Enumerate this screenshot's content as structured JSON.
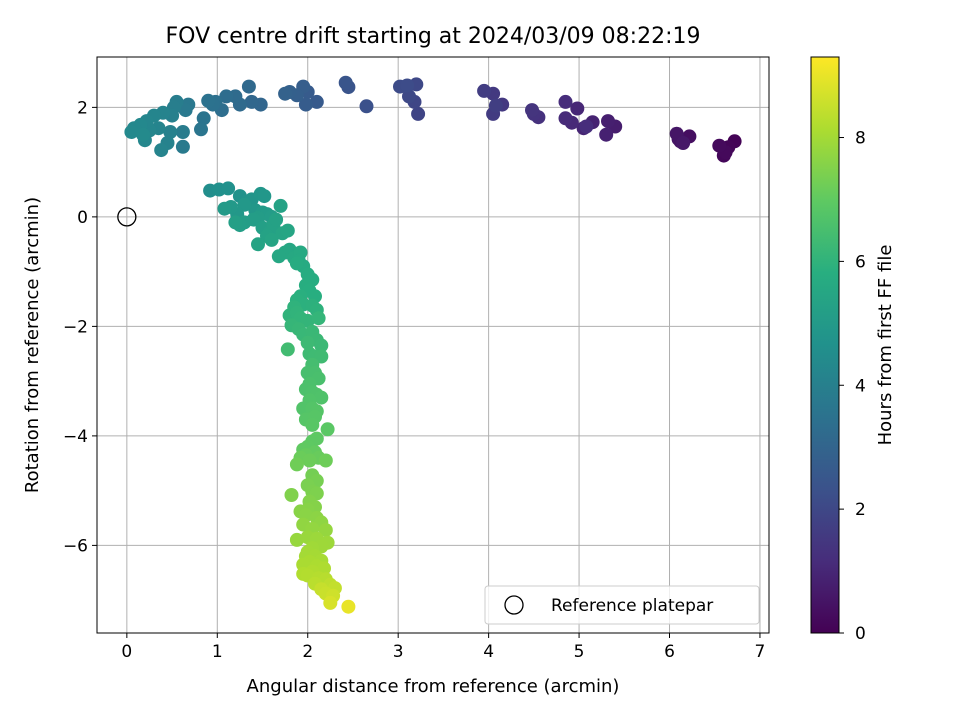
{
  "chart_data": {
    "type": "scatter",
    "title": "FOV centre drift starting at 2024/03/09 08:22:19",
    "xlabel": "Angular distance from reference (arcmin)",
    "ylabel": "Rotation from reference (arcmin)",
    "xlim": [
      -0.33,
      7.1
    ],
    "ylim": [
      -7.6,
      2.92
    ],
    "xticks": [
      0,
      1,
      2,
      3,
      4,
      5,
      6,
      7
    ],
    "yticks": [
      -6,
      -4,
      -2,
      0,
      2
    ],
    "grid": true,
    "colorbar": {
      "label": "Hours from first FF file",
      "colormap": "viridis",
      "range": [
        0,
        9.3
      ],
      "ticks": [
        0,
        2,
        4,
        6,
        8
      ]
    },
    "legend": {
      "placement": "lower right",
      "entries": [
        {
          "label": "Reference platepar",
          "marker": "open-circle"
        }
      ]
    },
    "reference_point": {
      "x": 0,
      "y": 0
    },
    "points": [
      [
        6.72,
        1.38,
        0.05
      ],
      [
        6.65,
        1.27,
        0.1
      ],
      [
        6.6,
        1.12,
        0.15
      ],
      [
        6.62,
        1.18,
        0.2
      ],
      [
        6.55,
        1.3,
        0.25
      ],
      [
        6.22,
        1.47,
        0.35
      ],
      [
        6.12,
        1.38,
        0.45
      ],
      [
        6.1,
        1.42,
        0.5
      ],
      [
        6.08,
        1.52,
        0.55
      ],
      [
        6.15,
        1.35,
        0.6
      ],
      [
        5.4,
        1.65,
        0.75
      ],
      [
        5.32,
        1.75,
        0.8
      ],
      [
        5.3,
        1.5,
        0.85
      ],
      [
        5.15,
        1.73,
        0.9
      ],
      [
        5.05,
        1.62,
        0.95
      ],
      [
        4.98,
        1.98,
        1.0
      ],
      [
        4.92,
        1.72,
        1.05
      ],
      [
        4.85,
        1.8,
        1.1
      ],
      [
        4.85,
        2.1,
        1.15
      ],
      [
        5.08,
        1.65,
        1.2
      ],
      [
        4.55,
        1.82,
        1.3
      ],
      [
        4.5,
        1.88,
        1.35
      ],
      [
        4.48,
        1.95,
        1.4
      ],
      [
        4.15,
        2.05,
        1.5
      ],
      [
        4.05,
        2.25,
        1.55
      ],
      [
        4.05,
        1.88,
        1.6
      ],
      [
        3.95,
        2.3,
        1.65
      ],
      [
        4.08,
        2.03,
        1.7
      ],
      [
        3.22,
        1.88,
        1.9
      ],
      [
        3.18,
        2.1,
        1.95
      ],
      [
        3.2,
        2.42,
        2.0
      ],
      [
        3.12,
        2.2,
        2.05
      ],
      [
        3.02,
        2.38,
        2.1
      ],
      [
        3.1,
        2.4,
        2.15
      ],
      [
        2.65,
        2.02,
        2.3
      ],
      [
        2.45,
        2.37,
        2.4
      ],
      [
        2.42,
        2.45,
        2.45
      ],
      [
        2.1,
        2.1,
        2.6
      ],
      [
        2.0,
        2.28,
        2.65
      ],
      [
        1.98,
        2.05,
        2.7
      ],
      [
        1.95,
        2.38,
        2.75
      ],
      [
        1.88,
        2.22,
        2.8
      ],
      [
        1.8,
        2.28,
        2.85
      ],
      [
        1.75,
        2.25,
        2.9
      ],
      [
        1.48,
        2.05,
        3.05
      ],
      [
        1.38,
        2.1,
        3.1
      ],
      [
        1.35,
        2.38,
        3.15
      ],
      [
        1.25,
        2.05,
        3.2
      ],
      [
        1.2,
        2.2,
        3.25
      ],
      [
        1.1,
        2.2,
        3.3
      ],
      [
        1.05,
        1.95,
        3.35
      ],
      [
        0.98,
        2.1,
        3.4
      ],
      [
        0.95,
        2.05,
        3.45
      ],
      [
        0.9,
        2.12,
        3.5
      ],
      [
        0.85,
        1.8,
        3.55
      ],
      [
        0.82,
        1.6,
        3.6
      ],
      [
        0.68,
        2.05,
        3.7
      ],
      [
        0.65,
        1.95,
        3.75
      ],
      [
        0.62,
        1.28,
        3.8
      ],
      [
        0.62,
        1.55,
        3.85
      ],
      [
        0.55,
        2.1,
        3.9
      ],
      [
        0.52,
        2.0,
        3.95
      ],
      [
        0.5,
        1.85,
        4.0
      ],
      [
        0.48,
        1.55,
        4.05
      ],
      [
        0.45,
        1.35,
        4.1
      ],
      [
        0.4,
        1.9,
        4.12
      ],
      [
        0.38,
        1.22,
        4.15
      ],
      [
        0.35,
        1.62,
        4.18
      ],
      [
        0.3,
        1.85,
        4.2
      ],
      [
        0.25,
        1.58,
        4.22
      ],
      [
        0.22,
        1.75,
        4.25
      ],
      [
        0.2,
        1.4,
        4.28
      ],
      [
        0.15,
        1.68,
        4.3
      ],
      [
        0.08,
        1.62,
        4.32
      ],
      [
        0.05,
        1.55,
        4.35
      ],
      [
        0.18,
        1.5,
        4.38
      ],
      [
        0.92,
        0.48,
        4.55
      ],
      [
        1.02,
        0.5,
        4.6
      ],
      [
        1.12,
        0.52,
        4.65
      ],
      [
        1.25,
        0.38,
        4.7
      ],
      [
        1.32,
        0.28,
        4.75
      ],
      [
        1.38,
        0.32,
        4.8
      ],
      [
        1.48,
        0.42,
        4.85
      ],
      [
        1.52,
        0.38,
        4.88
      ],
      [
        1.42,
        0.12,
        4.9
      ],
      [
        1.3,
        0.22,
        4.92
      ],
      [
        1.22,
        0.05,
        4.95
      ],
      [
        1.15,
        0.18,
        4.98
      ],
      [
        1.08,
        0.15,
        5.0
      ],
      [
        1.5,
        0.08,
        5.02
      ],
      [
        1.55,
        0.05,
        5.05
      ],
      [
        1.6,
        0.0,
        5.08
      ],
      [
        1.45,
        -0.02,
        5.1
      ],
      [
        1.4,
        -0.05,
        5.12
      ],
      [
        1.3,
        -0.1,
        5.15
      ],
      [
        1.25,
        -0.15,
        5.18
      ],
      [
        1.2,
        -0.1,
        5.2
      ],
      [
        1.5,
        -0.2,
        5.22
      ],
      [
        1.58,
        -0.28,
        5.25
      ],
      [
        1.62,
        -0.15,
        5.28
      ],
      [
        1.65,
        -0.05,
        5.3
      ],
      [
        1.7,
        0.2,
        5.32
      ],
      [
        1.55,
        -0.35,
        5.35
      ],
      [
        1.45,
        -0.5,
        5.38
      ],
      [
        1.6,
        -0.42,
        5.4
      ],
      [
        1.72,
        -0.3,
        5.42
      ],
      [
        1.78,
        -0.25,
        5.45
      ],
      [
        1.8,
        -0.6,
        5.5
      ],
      [
        1.75,
        -0.65,
        5.52
      ],
      [
        1.68,
        -0.72,
        5.55
      ],
      [
        1.85,
        -0.75,
        5.58
      ],
      [
        1.92,
        -0.65,
        5.6
      ],
      [
        1.9,
        -0.8,
        5.62
      ],
      [
        1.95,
        -0.9,
        5.65
      ],
      [
        1.88,
        -0.85,
        5.68
      ],
      [
        2.0,
        -1.05,
        5.72
      ],
      [
        2.05,
        -1.15,
        5.75
      ],
      [
        1.98,
        -1.25,
        5.78
      ],
      [
        2.02,
        -1.35,
        5.8
      ],
      [
        2.08,
        -1.45,
        5.82
      ],
      [
        1.92,
        -1.45,
        5.85
      ],
      [
        1.88,
        -1.52,
        5.88
      ],
      [
        1.95,
        -1.6,
        5.9
      ],
      [
        2.05,
        -1.62,
        5.92
      ],
      [
        2.1,
        -1.7,
        5.95
      ],
      [
        1.85,
        -1.65,
        5.98
      ],
      [
        1.8,
        -1.8,
        6.0
      ],
      [
        1.88,
        -1.75,
        6.02
      ],
      [
        1.92,
        -1.85,
        6.05
      ],
      [
        2.0,
        -1.9,
        6.08
      ],
      [
        2.12,
        -1.85,
        6.1
      ],
      [
        1.82,
        -1.98,
        6.12
      ],
      [
        1.9,
        -2.05,
        6.15
      ],
      [
        1.95,
        -2.15,
        6.18
      ],
      [
        2.05,
        -2.1,
        6.2
      ],
      [
        2.1,
        -2.25,
        6.22
      ],
      [
        2.15,
        -2.35,
        6.25
      ],
      [
        2.0,
        -2.3,
        6.28
      ],
      [
        2.02,
        -2.5,
        6.3
      ],
      [
        2.08,
        -2.55,
        6.32
      ],
      [
        2.15,
        -2.55,
        6.35
      ],
      [
        1.78,
        -2.42,
        6.38
      ],
      [
        2.05,
        -2.7,
        6.45
      ],
      [
        2.0,
        -2.85,
        6.5
      ],
      [
        2.08,
        -2.85,
        6.52
      ],
      [
        2.12,
        -2.95,
        6.55
      ],
      [
        2.02,
        -3.05,
        6.58
      ],
      [
        1.98,
        -3.15,
        6.6
      ],
      [
        2.05,
        -3.2,
        6.62
      ],
      [
        2.1,
        -3.25,
        6.65
      ],
      [
        2.15,
        -3.3,
        6.68
      ],
      [
        2.02,
        -3.35,
        6.7
      ],
      [
        1.95,
        -3.5,
        6.72
      ],
      [
        2.05,
        -3.5,
        6.75
      ],
      [
        2.1,
        -3.55,
        6.78
      ],
      [
        1.98,
        -3.7,
        6.8
      ],
      [
        2.08,
        -3.65,
        6.82
      ],
      [
        2.05,
        -3.8,
        6.85
      ],
      [
        2.22,
        -3.88,
        6.88
      ],
      [
        2.05,
        -4.1,
        6.92
      ],
      [
        2.1,
        -4.05,
        6.95
      ],
      [
        2.0,
        -4.2,
        6.98
      ],
      [
        1.95,
        -4.25,
        7.0
      ],
      [
        2.08,
        -4.3,
        7.05
      ],
      [
        1.98,
        -4.35,
        7.1
      ],
      [
        2.12,
        -4.4,
        7.12
      ],
      [
        1.92,
        -4.4,
        7.15
      ],
      [
        2.02,
        -4.45,
        7.18
      ],
      [
        2.2,
        -4.45,
        7.2
      ],
      [
        1.88,
        -4.52,
        7.22
      ],
      [
        2.05,
        -4.72,
        7.3
      ],
      [
        2.1,
        -4.82,
        7.35
      ],
      [
        2.0,
        -4.9,
        7.38
      ],
      [
        2.05,
        -5.02,
        7.42
      ],
      [
        2.1,
        -5.05,
        7.45
      ],
      [
        1.82,
        -5.08,
        7.48
      ],
      [
        2.02,
        -5.2,
        7.52
      ],
      [
        2.08,
        -5.3,
        7.55
      ],
      [
        2.0,
        -5.35,
        7.58
      ],
      [
        1.92,
        -5.38,
        7.6
      ],
      [
        1.98,
        -5.45,
        7.62
      ],
      [
        2.1,
        -5.5,
        7.65
      ],
      [
        2.15,
        -5.58,
        7.7
      ],
      [
        1.95,
        -5.62,
        7.72
      ],
      [
        2.05,
        -5.7,
        7.75
      ],
      [
        2.2,
        -5.72,
        7.78
      ],
      [
        1.88,
        -5.9,
        7.82
      ],
      [
        2.0,
        -5.85,
        7.85
      ],
      [
        2.1,
        -5.88,
        7.88
      ],
      [
        2.22,
        -5.95,
        7.9
      ],
      [
        2.15,
        -6.02,
        7.92
      ],
      [
        2.05,
        -6.05,
        7.95
      ],
      [
        2.0,
        -6.12,
        7.98
      ],
      [
        1.98,
        -6.2,
        8.0
      ],
      [
        2.08,
        -6.2,
        8.02
      ],
      [
        2.15,
        -6.28,
        8.05
      ],
      [
        2.02,
        -6.3,
        8.08
      ],
      [
        1.95,
        -6.35,
        8.1
      ],
      [
        2.1,
        -6.38,
        8.12
      ],
      [
        2.18,
        -6.42,
        8.15
      ],
      [
        2.05,
        -6.48,
        8.18
      ],
      [
        1.95,
        -6.52,
        8.2
      ],
      [
        2.0,
        -6.55,
        8.22
      ],
      [
        2.12,
        -6.6,
        8.25
      ],
      [
        2.2,
        -6.62,
        8.28
      ],
      [
        2.08,
        -6.7,
        8.32
      ],
      [
        2.25,
        -6.72,
        8.38
      ],
      [
        2.3,
        -6.78,
        8.45
      ],
      [
        2.15,
        -6.8,
        8.5
      ],
      [
        2.2,
        -6.88,
        8.55
      ],
      [
        2.28,
        -6.92,
        8.62
      ],
      [
        2.25,
        -7.05,
        8.75
      ],
      [
        2.45,
        -7.12,
        9.0
      ]
    ]
  }
}
